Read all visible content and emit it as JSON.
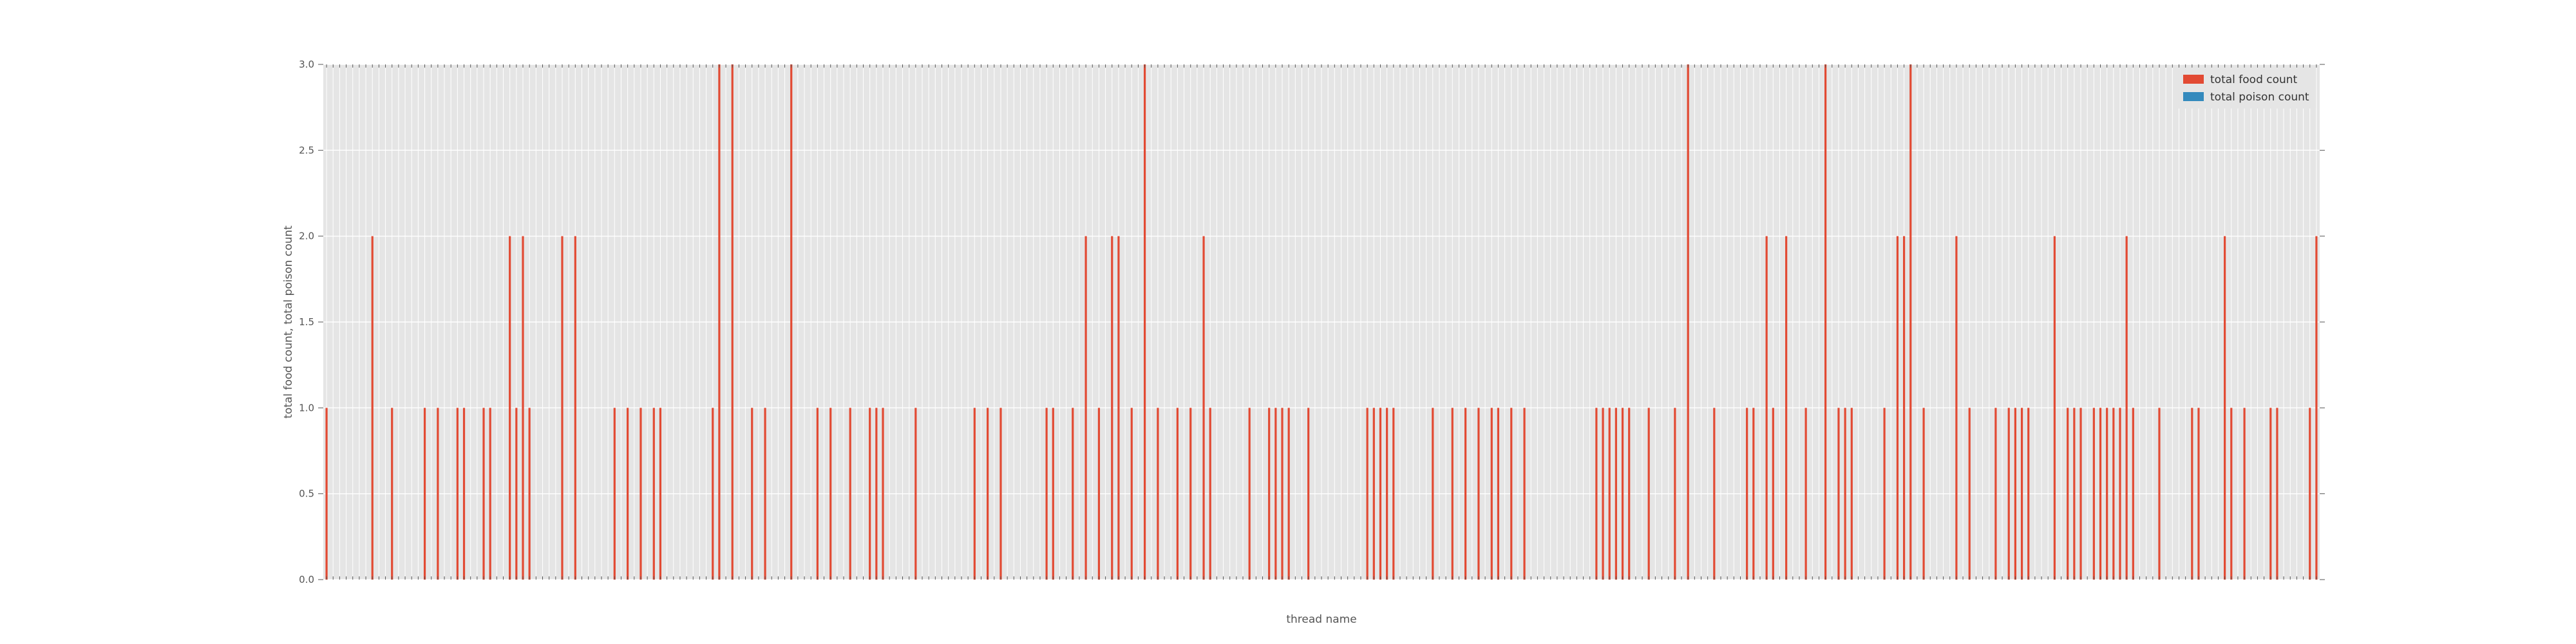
{
  "chart_data": {
    "type": "bar",
    "title": "",
    "xlabel": "thread name",
    "ylabel": "total food count, total poison count",
    "ylim": [
      0,
      3
    ],
    "yticks": [
      "0.0",
      "0.5",
      "1.0",
      "1.5",
      "2.0",
      "2.5",
      "3.0"
    ],
    "grid": true,
    "legend_position": "top-right",
    "series": [
      {
        "name": "total food count",
        "color": "#e24a33",
        "values": [
          1,
          0,
          0,
          0,
          0,
          0,
          0,
          2,
          0,
          0,
          1,
          0,
          0,
          0,
          0,
          1,
          0,
          1,
          0,
          0,
          1,
          1,
          0,
          0,
          1,
          1,
          0,
          0,
          2,
          1,
          2,
          1,
          0,
          0,
          0,
          0,
          2,
          0,
          2,
          0,
          0,
          0,
          0,
          0,
          1,
          0,
          1,
          0,
          1,
          0,
          1,
          1,
          0,
          0,
          0,
          0,
          0,
          0,
          0,
          1,
          3,
          0,
          3,
          0,
          0,
          1,
          0,
          1,
          0,
          0,
          0,
          3,
          0,
          0,
          0,
          1,
          0,
          1,
          0,
          0,
          1,
          0,
          0,
          1,
          1,
          1,
          0,
          0,
          0,
          0,
          1,
          0,
          0,
          0,
          0,
          0,
          0,
          0,
          0,
          1,
          0,
          1,
          0,
          1,
          0,
          0,
          0,
          0,
          0,
          0,
          1,
          1,
          0,
          0,
          1,
          0,
          2,
          0,
          1,
          0,
          2,
          2,
          0,
          1,
          0,
          3,
          0,
          1,
          0,
          0,
          1,
          0,
          1,
          0,
          2,
          1,
          0,
          0,
          0,
          0,
          0,
          1,
          0,
          0,
          1,
          1,
          1,
          1,
          0,
          0,
          1,
          0,
          0,
          0,
          0,
          0,
          0,
          0,
          0,
          1,
          1,
          1,
          1,
          1,
          0,
          0,
          0,
          0,
          0,
          1,
          0,
          0,
          1,
          0,
          1,
          0,
          1,
          0,
          1,
          1,
          0,
          1,
          0,
          1,
          0,
          0,
          0,
          0,
          0,
          0,
          0,
          0,
          0,
          0,
          1,
          1,
          1,
          1,
          1,
          1,
          0,
          0,
          1,
          0,
          0,
          0,
          1,
          0,
          3,
          0,
          0,
          0,
          1,
          0,
          0,
          0,
          0,
          1,
          1,
          0,
          2,
          1,
          0,
          2,
          0,
          0,
          1,
          0,
          0,
          3,
          0,
          1,
          1,
          1,
          0,
          0,
          0,
          0,
          1,
          0,
          2,
          2,
          3,
          0,
          1,
          0,
          0,
          0,
          0,
          2,
          0,
          1,
          0,
          0,
          0,
          1,
          0,
          1,
          1,
          1,
          1,
          0,
          0,
          0,
          2,
          0,
          1,
          1,
          1,
          0,
          1,
          1,
          1,
          1,
          1,
          2,
          1,
          0,
          0,
          0,
          1,
          0,
          0,
          0,
          0,
          1,
          1,
          0,
          0,
          0,
          2,
          1,
          0,
          1,
          0,
          0,
          0,
          1,
          1,
          0,
          0,
          0,
          0,
          1,
          2
        ]
      },
      {
        "name": "total poison count",
        "color": "#348abd",
        "values": []
      }
    ]
  }
}
